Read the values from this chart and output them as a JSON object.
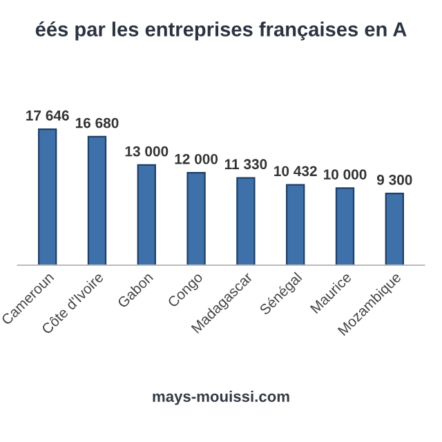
{
  "chart_data": {
    "type": "bar",
    "title": "éés par les entreprises françaises en A",
    "categories": [
      "Cameroun",
      "Côte d'Ivoire",
      "Gabon",
      "Congo",
      "Madagascar",
      "Sénégal",
      "Maurice",
      "Mozambique"
    ],
    "values": [
      17646,
      16680,
      13000,
      12000,
      11330,
      10432,
      10000,
      9300
    ],
    "value_labels": [
      "17 646",
      "16 680",
      "13 000",
      "12 000",
      "11 330",
      "10 432",
      "10 000",
      "9 300"
    ],
    "color": "#3e70a9",
    "annotations": [
      "mays-mouissi.com"
    ],
    "grid": false,
    "legend": false
  }
}
